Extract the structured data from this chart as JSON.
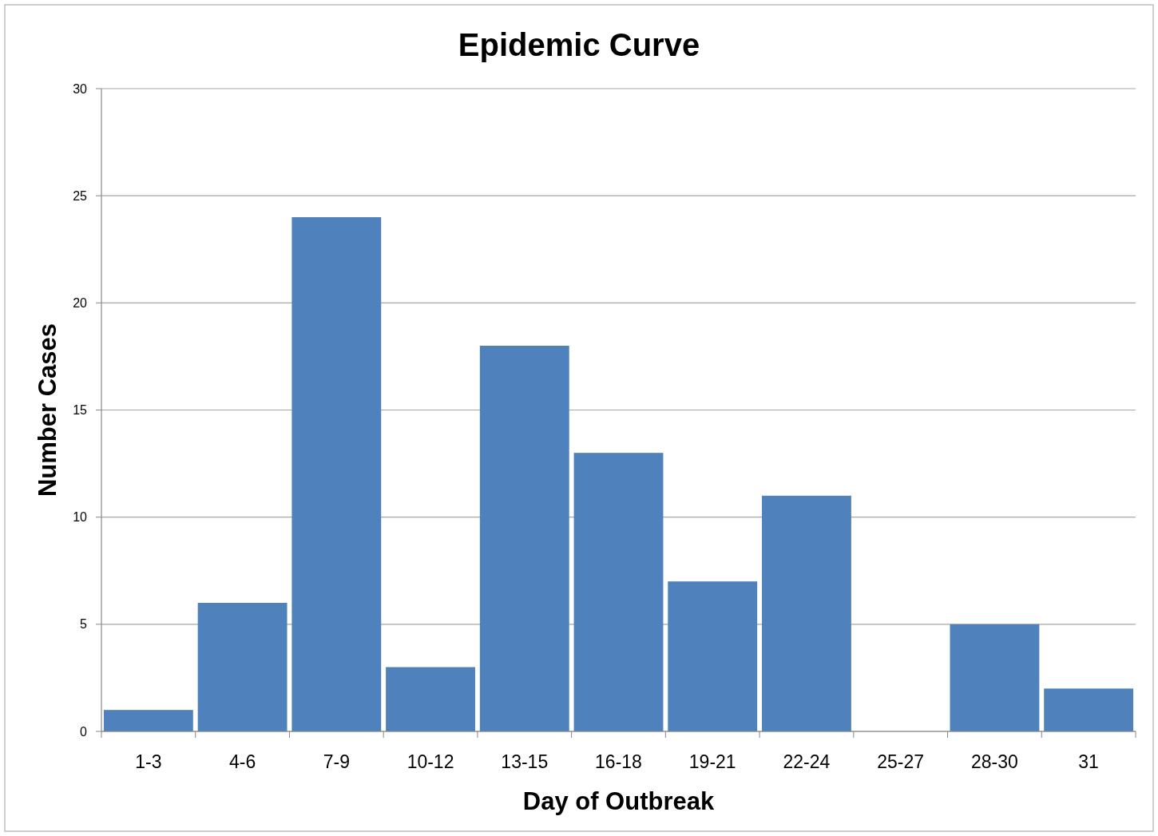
{
  "chart_data": {
    "type": "bar",
    "title": "Epidemic Curve",
    "xlabel": "Day of Outbreak",
    "ylabel": "Number Cases",
    "categories": [
      "1-3",
      "4-6",
      "7-9",
      "10-12",
      "13-15",
      "16-18",
      "19-21",
      "22-24",
      "25-27",
      "28-30",
      "31"
    ],
    "values": [
      1,
      6,
      24,
      3,
      18,
      13,
      7,
      11,
      0,
      5,
      2
    ],
    "color": "#4f81bd",
    "ylim": [
      0,
      30
    ],
    "yticks": [
      0,
      5,
      10,
      15,
      20,
      25,
      30
    ],
    "grid": "y"
  }
}
